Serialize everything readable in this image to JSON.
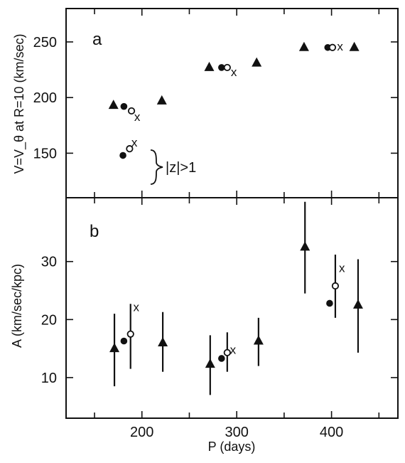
{
  "chart_data": [
    {
      "type": "scatter",
      "panel": "a",
      "title": "",
      "xlabel": "P(days)",
      "ylabel": "V=V_θ at R=10 (km/sec)",
      "xlim": [
        120,
        470
      ],
      "ylim": [
        110,
        280
      ],
      "xticks": [
        200,
        300,
        400
      ],
      "yticks": [
        150,
        200,
        250
      ],
      "annotation": "|z|>1",
      "series": [
        {
          "marker": "triangle",
          "points": [
            {
              "x": 170,
              "y": 193
            },
            {
              "x": 221,
              "y": 197
            },
            {
              "x": 271,
              "y": 227
            },
            {
              "x": 321,
              "y": 231
            },
            {
              "x": 371,
              "y": 245
            },
            {
              "x": 424,
              "y": 245
            }
          ]
        },
        {
          "marker": "filled-circle",
          "points": [
            {
              "x": 181,
              "y": 192
            },
            {
              "x": 180,
              "y": 148
            },
            {
              "x": 284,
              "y": 227
            },
            {
              "x": 396,
              "y": 245
            }
          ]
        },
        {
          "marker": "open-circle",
          "points": [
            {
              "x": 189,
              "y": 188
            },
            {
              "x": 187,
              "y": 154
            },
            {
              "x": 290,
              "y": 227
            },
            {
              "x": 401,
              "y": 245
            }
          ]
        },
        {
          "marker": "x",
          "points": [
            {
              "x": 195,
              "y": 183
            },
            {
              "x": 192,
              "y": 160
            },
            {
              "x": 297,
              "y": 223
            },
            {
              "x": 409,
              "y": 246
            }
          ]
        }
      ]
    },
    {
      "type": "scatter",
      "panel": "b",
      "title": "",
      "xlabel": "P (days)",
      "ylabel": "A (km/sec/kpc)",
      "xlim": [
        120,
        470
      ],
      "ylim": [
        3,
        41
      ],
      "xticks": [
        200,
        300,
        400
      ],
      "yticks": [
        10,
        20,
        30
      ],
      "series": [
        {
          "marker": "triangle",
          "points": [
            {
              "x": 171,
              "y": 15,
              "err_low": 8.5,
              "err_high": 21
            },
            {
              "x": 222,
              "y": 16,
              "err_low": 11,
              "err_high": 21.3
            },
            {
              "x": 272,
              "y": 12.3,
              "err_low": 7,
              "err_high": 17.3
            },
            {
              "x": 323,
              "y": 16.3,
              "err_low": 12,
              "err_high": 20.3
            },
            {
              "x": 372,
              "y": 32.5,
              "err_low": 24.5,
              "err_high": 40.3
            },
            {
              "x": 428,
              "y": 22.5,
              "err_low": 14.3,
              "err_high": 30.4
            }
          ]
        },
        {
          "marker": "filled-circle",
          "points": [
            {
              "x": 181,
              "y": 16.3
            },
            {
              "x": 284,
              "y": 13.3
            },
            {
              "x": 398,
              "y": 22.8
            }
          ]
        },
        {
          "marker": "open-circle",
          "points": [
            {
              "x": 188,
              "y": 17.5,
              "err_low": 11.5,
              "err_high": 22.7
            },
            {
              "x": 290,
              "y": 14.3,
              "err_low": 11,
              "err_high": 17.8
            },
            {
              "x": 404,
              "y": 25.8,
              "err_low": 20.3,
              "err_high": 31.2
            }
          ]
        },
        {
          "marker": "x",
          "points": [
            {
              "x": 194,
              "y": 22.2
            },
            {
              "x": 296,
              "y": 14.8
            },
            {
              "x": 411,
              "y": 28.9
            }
          ]
        }
      ]
    }
  ],
  "panel_labels": {
    "a": "a",
    "b": "b"
  },
  "axis_titles": {
    "top_ylabel": "V=V_θ at R=10 (km/sec)",
    "bottom_ylabel": "A (km/sec/kpc)",
    "xlabel": "P (days)"
  },
  "annotations": {
    "zlabel": "|z|>1"
  }
}
